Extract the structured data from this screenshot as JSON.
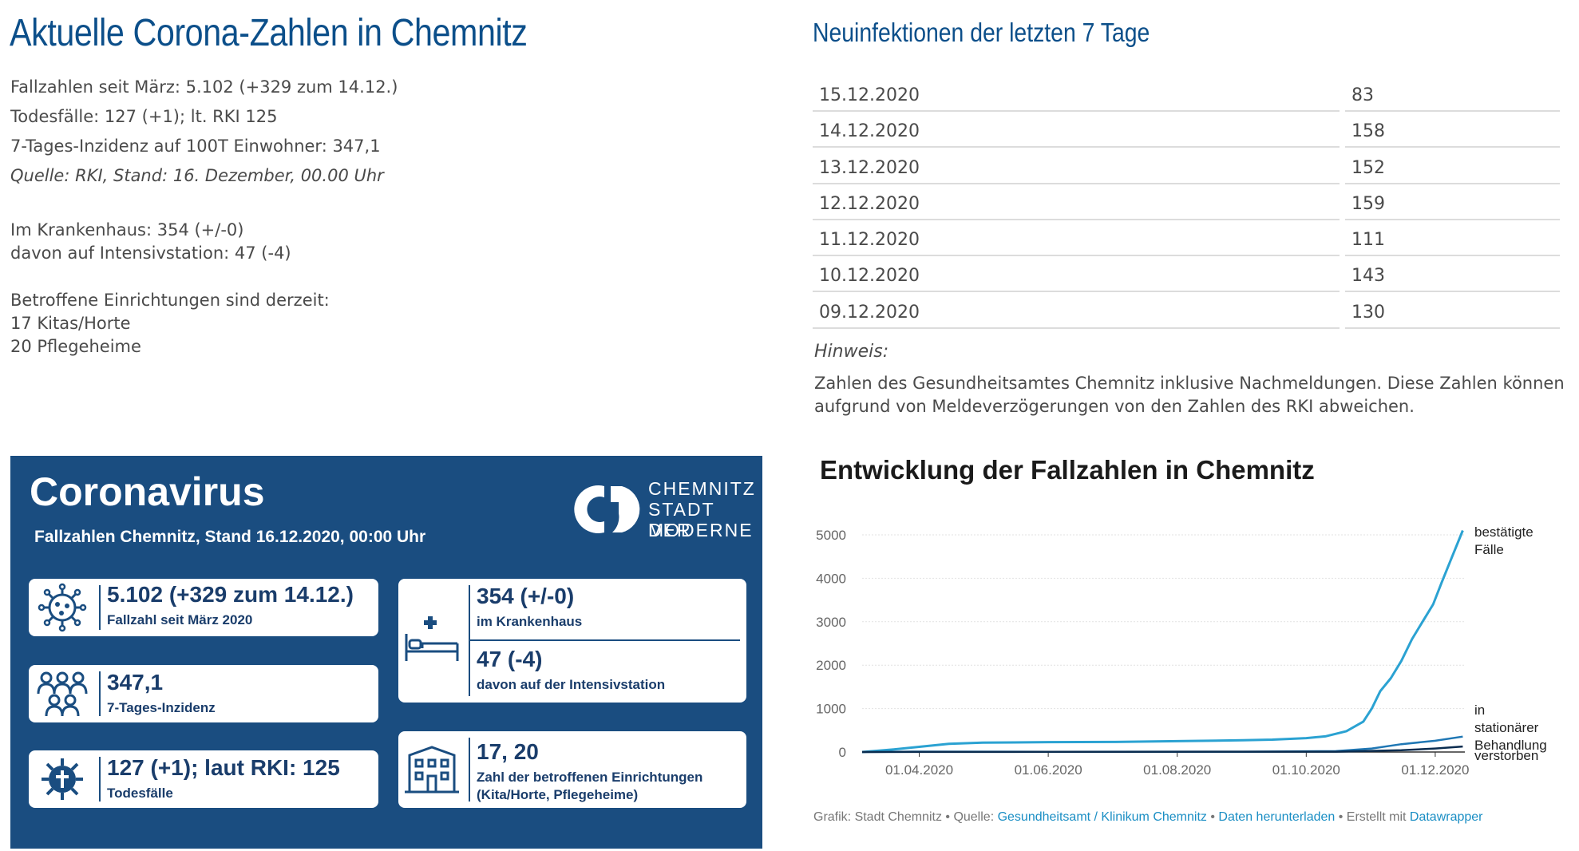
{
  "left": {
    "title": "Aktuelle Corona-Zahlen in Chemnitz",
    "lines": [
      "Fallzahlen seit März: 5.102 (+329 zum 14.12.)",
      "Todesfälle: 127 (+1);  lt. RKI 125",
      "7-Tages-Inzidenz auf 100T Einwohner: 347,1",
      "Quelle: RKI, Stand: 16. Dezember, 00.00 Uhr"
    ],
    "hospital": [
      "Im Krankenhaus: 354 (+/-0)",
      "davon auf Intensivstation: 47 (-4)"
    ],
    "facilities": [
      "Betroffene Einrichtungen sind derzeit:",
      "17  Kitas/Horte",
      "20 Pflegeheime"
    ]
  },
  "table": {
    "title": "Neuinfektionen der letzten 7 Tage",
    "rows": [
      {
        "date": "15.12.2020",
        "value": "83"
      },
      {
        "date": "14.12.2020",
        "value": "158"
      },
      {
        "date": "13.12.2020",
        "value": "152"
      },
      {
        "date": "12.12.2020",
        "value": "159"
      },
      {
        "date": "11.12.2020",
        "value": "111"
      },
      {
        "date": "10.12.2020",
        "value": "143"
      },
      {
        "date": "09.12.2020",
        "value": "130"
      }
    ],
    "hint_label": "Hinweis:",
    "hint_text": "Zahlen des Gesundheitsamtes Chemnitz inklusive Nachmeldungen. Diese Zahlen können aufgrund von Meldeverzögerungen von den Zahlen des RKI abweichen."
  },
  "infographic": {
    "title": "Coronavirus",
    "subtitle": "Fallzahlen Chemnitz, Stand 16.12.2020, 00:00 Uhr",
    "logo_lines": [
      "CHEMNITZ",
      "STADT DER",
      "MODERNE"
    ],
    "cards": {
      "cases_main": "5.102 (+329 zum 14.12.)",
      "cases_sub": "Fallzahl seit März 2020",
      "incidence_main": "347,1",
      "incidence_sub": "7-Tages-Inzidenz",
      "deaths_main": "127 (+1); laut RKI: 125",
      "deaths_sub": "Todesfälle",
      "hospital_main": "354 (+/-0)",
      "hospital_sub": "im Krankenhaus",
      "icu_main": "47 (-4)",
      "icu_sub": "davon auf der Intensivstation",
      "facilities_main": "17, 20",
      "facilities_sub1": "Zahl der betroffenen Einrichtungen",
      "facilities_sub2": "(Kita/Horte, Pflegeheime)"
    },
    "icons": {
      "cases": "virus-icon",
      "incidence": "people-icon",
      "deaths": "cross-virus-icon",
      "hospital": "hospital-bed-icon",
      "facilities": "building-icon"
    },
    "colors": {
      "background": "#1a4d80",
      "card": "#ffffff",
      "text": "#1a3d6b"
    }
  },
  "chart_data": {
    "type": "line",
    "title": "Entwicklung der Fallzahlen in Chemnitz",
    "y_ticks": [
      "5000",
      "4000",
      "3000",
      "2000",
      "1000",
      "0"
    ],
    "y_values": [
      5000,
      4000,
      3000,
      2000,
      1000,
      0
    ],
    "ylim": [
      0,
      5000
    ],
    "x_ticks": [
      "01.04.2020",
      "01.06.2020",
      "01.08.2020",
      "01.10.2020",
      "01.12.2020"
    ],
    "x_tick_dates": [
      "2020-04-01",
      "2020-06-01",
      "2020-08-01",
      "2020-10-01",
      "2020-12-01"
    ],
    "xlim": [
      "2020-03-05",
      "2020-12-15"
    ],
    "grid": true,
    "series": [
      {
        "name": "bestätigte Fälle",
        "color": "#2ba2d2",
        "points": [
          [
            "2020-03-05",
            0
          ],
          [
            "2020-03-20",
            60
          ],
          [
            "2020-04-01",
            120
          ],
          [
            "2020-04-15",
            190
          ],
          [
            "2020-05-01",
            215
          ],
          [
            "2020-06-01",
            228
          ],
          [
            "2020-07-01",
            232
          ],
          [
            "2020-08-01",
            250
          ],
          [
            "2020-09-01",
            270
          ],
          [
            "2020-09-15",
            285
          ],
          [
            "2020-10-01",
            320
          ],
          [
            "2020-10-10",
            360
          ],
          [
            "2020-10-20",
            480
          ],
          [
            "2020-10-28",
            700
          ],
          [
            "2020-11-01",
            1000
          ],
          [
            "2020-11-05",
            1400
          ],
          [
            "2020-11-10",
            1700
          ],
          [
            "2020-11-15",
            2100
          ],
          [
            "2020-11-20",
            2600
          ],
          [
            "2020-11-25",
            3000
          ],
          [
            "2020-11-30",
            3400
          ],
          [
            "2020-12-04",
            3900
          ],
          [
            "2020-12-09",
            4500
          ],
          [
            "2020-12-14",
            5102
          ]
        ]
      },
      {
        "name": "in stationärer Behandlung",
        "color": "#1f77b4",
        "points": [
          [
            "2020-03-05",
            0
          ],
          [
            "2020-04-01",
            10
          ],
          [
            "2020-06-01",
            5
          ],
          [
            "2020-09-01",
            8
          ],
          [
            "2020-10-15",
            20
          ],
          [
            "2020-11-01",
            80
          ],
          [
            "2020-11-15",
            180
          ],
          [
            "2020-12-01",
            260
          ],
          [
            "2020-12-14",
            354
          ]
        ]
      },
      {
        "name": "verstorben",
        "color": "#0a2c4f",
        "points": [
          [
            "2020-03-05",
            0
          ],
          [
            "2020-04-01",
            2
          ],
          [
            "2020-06-01",
            4
          ],
          [
            "2020-10-15",
            8
          ],
          [
            "2020-11-15",
            40
          ],
          [
            "2020-12-01",
            80
          ],
          [
            "2020-12-14",
            127
          ]
        ]
      }
    ],
    "legend_labels": {
      "cases": [
        "bestätigte",
        "Fälle"
      ],
      "hospital": [
        "in",
        "stationärer",
        "Behandlung"
      ],
      "deaths": [
        "verstorben"
      ]
    }
  },
  "footer": {
    "prefix": "Grafik: Stadt Chemnitz • Quelle: ",
    "source_link": "Gesundheitsamt / Klinikum Chemnitz",
    "sep1": " • ",
    "download_link": "Daten herunterladen",
    "sep2": " • Erstellt mit ",
    "tool_link": "Datawrapper"
  }
}
